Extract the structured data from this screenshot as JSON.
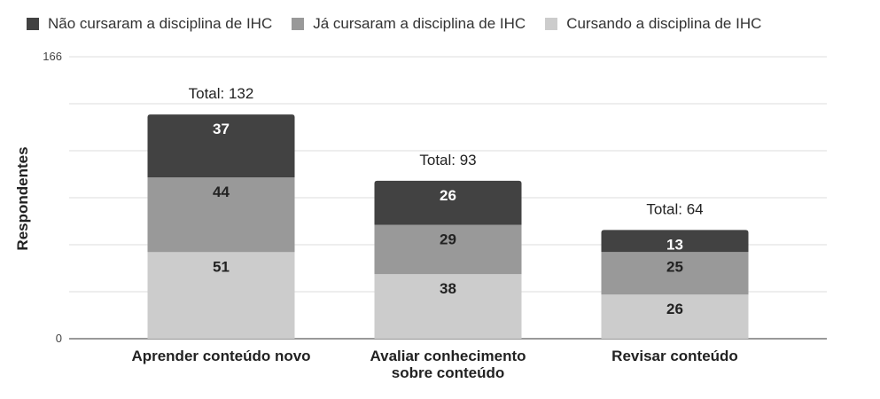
{
  "chart_data": {
    "type": "bar",
    "stacked": true,
    "categories": [
      [
        "Aprender conteúdo novo"
      ],
      [
        "Avaliar conhecimento",
        "sobre conteúdo"
      ],
      [
        "Revisar conteúdo"
      ]
    ],
    "series": [
      {
        "name": "Cursando a disciplina de IHC",
        "values": [
          51,
          38,
          26
        ],
        "color": "#cccccc",
        "label_color": "#222222"
      },
      {
        "name": "Já cursaram a disciplina de IHC",
        "values": [
          44,
          29,
          25
        ],
        "color": "#999999",
        "label_color": "#222222"
      },
      {
        "name": "Não cursaram a disciplina de IHC",
        "values": [
          37,
          26,
          13
        ],
        "color": "#424242",
        "label_color": "#ffffff"
      }
    ],
    "legend_order": [
      2,
      1,
      0
    ],
    "totals": [
      "Total: 132",
      "Total: 93",
      "Total: 64"
    ],
    "ylabel": "Respondentes",
    "xlabel": "",
    "ylim": [
      0,
      166
    ],
    "y_ticks": [
      "0",
      "166"
    ],
    "grid": true,
    "legend_position": "top"
  }
}
